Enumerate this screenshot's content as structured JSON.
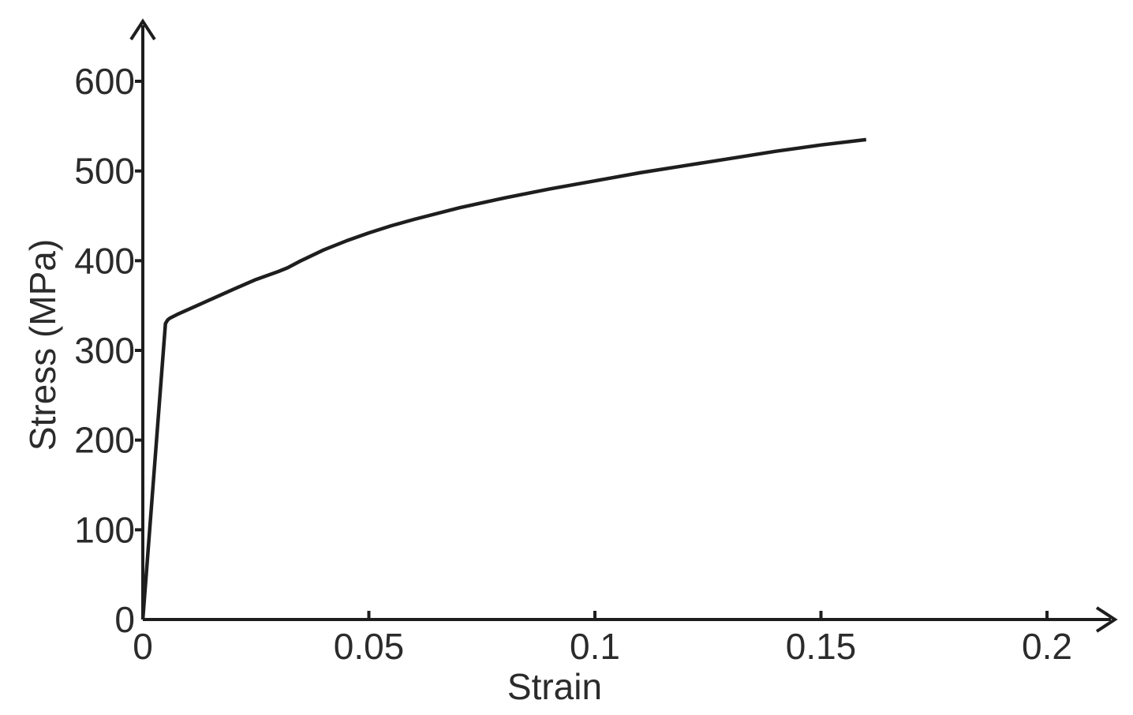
{
  "chart_data": {
    "type": "line",
    "title": "",
    "xlabel": "Strain",
    "ylabel": "Stress (MPa)",
    "xlim": [
      0,
      0.2
    ],
    "ylim": [
      0,
      600
    ],
    "x_ticks": [
      0,
      0.05,
      0.1,
      0.15,
      0.2
    ],
    "x_tick_labels": [
      "0",
      "0.05",
      "0.1",
      "0.15",
      "0.2"
    ],
    "y_ticks": [
      0,
      100,
      200,
      300,
      400,
      500,
      600
    ],
    "y_tick_labels": [
      "0",
      "100",
      "200",
      "300",
      "400",
      "500",
      "600"
    ],
    "grid": false,
    "legend": "none",
    "line_color": "#1e1e1e",
    "series": [
      {
        "x": [
          0,
          0.005,
          0.0055,
          0.006,
          0.008,
          0.012,
          0.016,
          0.02,
          0.025,
          0.03,
          0.032,
          0.035,
          0.04,
          0.045,
          0.05,
          0.055,
          0.06,
          0.07,
          0.08,
          0.09,
          0.1,
          0.11,
          0.12,
          0.13,
          0.14,
          0.15,
          0.16
        ],
        "y": [
          0,
          330,
          334,
          336,
          341,
          350,
          359,
          368,
          379,
          388,
          392,
          400,
          412,
          422,
          431,
          439,
          446,
          459,
          470,
          480,
          489,
          498,
          506,
          514,
          522,
          529,
          535
        ]
      }
    ]
  }
}
